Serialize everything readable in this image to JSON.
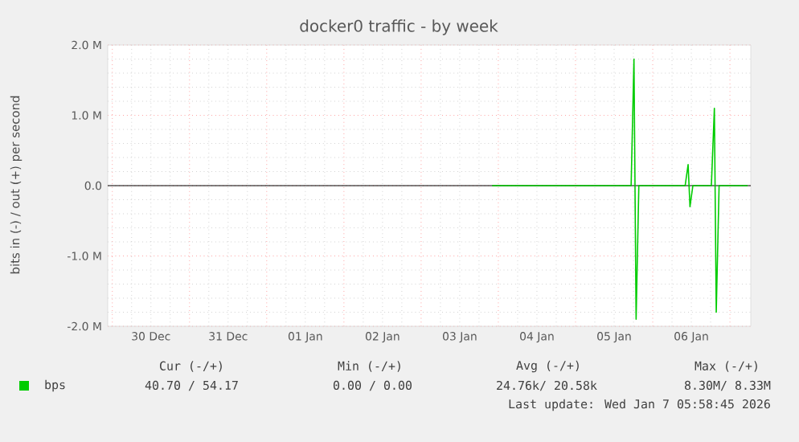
{
  "chart_data": {
    "type": "line",
    "title": "docker0 traffic - by week",
    "ylabel": "bits in (-) / out (+) per second",
    "xlim": [
      "2025-12-29T22:34",
      "2026-01-07T06:29"
    ],
    "ylim": [
      -2000000,
      2000000
    ],
    "xticks": [
      {
        "value": "2025-12-30",
        "label": null
      },
      {
        "value": "2025-12-30T12:00",
        "label": "30 Dec"
      },
      {
        "value": "2025-12-31",
        "label": null
      },
      {
        "value": "2025-12-31T12:00",
        "label": "31 Dec"
      },
      {
        "value": "2026-01-01",
        "label": null
      },
      {
        "value": "2026-01-01T12:00",
        "label": "01 Jan"
      },
      {
        "value": "2026-01-02",
        "label": null
      },
      {
        "value": "2026-01-02T12:00",
        "label": "02 Jan"
      },
      {
        "value": "2026-01-03",
        "label": null
      },
      {
        "value": "2026-01-03T12:00",
        "label": "03 Jan"
      },
      {
        "value": "2026-01-04",
        "label": null
      },
      {
        "value": "2026-01-04T12:00",
        "label": "04 Jan"
      },
      {
        "value": "2026-01-05",
        "label": null
      },
      {
        "value": "2026-01-05T12:00",
        "label": "05 Jan"
      },
      {
        "value": "2026-01-06",
        "label": null
      },
      {
        "value": "2026-01-06T12:00",
        "label": "06 Jan"
      },
      {
        "value": "2026-01-07",
        "label": null
      }
    ],
    "yticks": [
      {
        "value": -2000000,
        "label": "-2.0 M"
      },
      {
        "value": -1000000,
        "label": "-1.0 M"
      },
      {
        "value": 0,
        "label": "0.0"
      },
      {
        "value": 1000000,
        "label": "1.0 M"
      },
      {
        "value": 2000000,
        "label": "2.0 M"
      }
    ],
    "grid": true,
    "legend": "bottom",
    "ref_lines": [
      {
        "axis": "y",
        "value": 0,
        "color": "#000000"
      }
    ],
    "series": [
      {
        "name": "bps",
        "color": "#00cc00",
        "x": [
          "2026-01-03T22:05",
          "2026-01-04T12:00",
          "2026-01-05T00:00",
          "2026-01-05T12:00",
          "2026-01-05T17:17",
          "2026-01-05T18:10",
          "2026-01-05T18:50",
          "2026-01-05T19:41",
          "2026-01-06T10:05",
          "2026-01-06T11:00",
          "2026-01-06T11:35",
          "2026-01-06T12:29",
          "2026-01-06T18:14",
          "2026-01-06T19:10",
          "2026-01-06T19:45",
          "2026-01-06T20:38",
          "2026-01-07T05:31"
        ],
        "values": [
          0,
          0,
          0,
          0,
          0,
          1800000,
          -1900000,
          0,
          0,
          300000,
          -300000,
          0,
          0,
          1100000,
          -1800000,
          0,
          0
        ]
      }
    ],
    "annotations": [
      "Cur (-/+)",
      "Min (-/+)",
      "Avg (-/+)",
      "Max (-/+)",
      "40.70 / 54.17",
      "0.00 /   0.00",
      "24.76k/ 20.58k",
      "8.30M/   8.33M",
      "Last update: Wed Jan  7 05:58:45 2026"
    ]
  }
}
